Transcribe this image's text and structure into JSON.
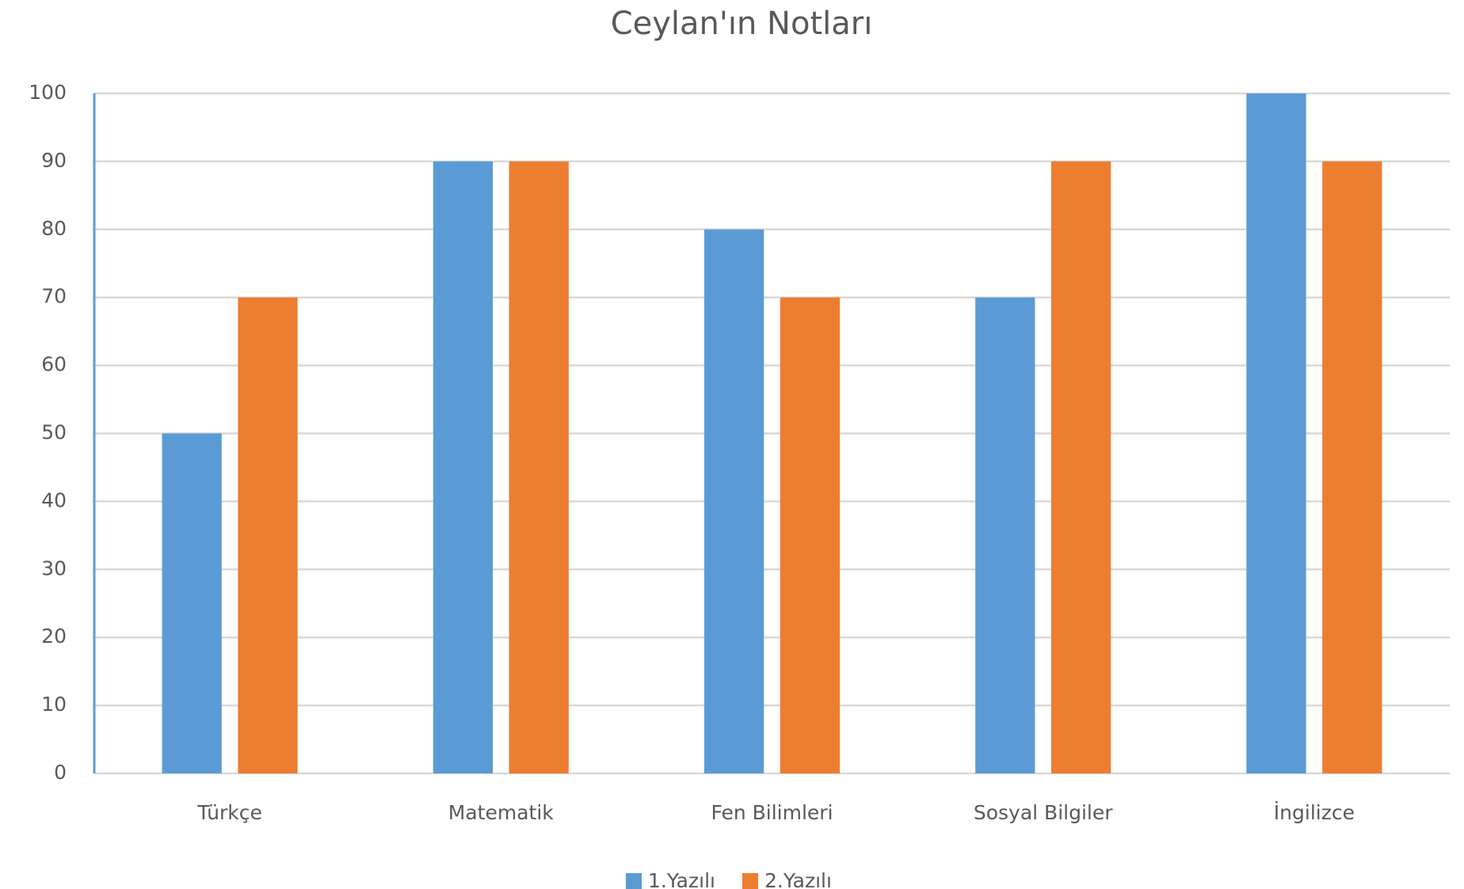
{
  "chart_data": {
    "type": "bar",
    "title": "Ceylan'ın Notları",
    "categories": [
      "Türkçe",
      "Matematik",
      "Fen Bilimleri",
      "Sosyal Bilgiler",
      "İngilizce"
    ],
    "series": [
      {
        "name": "1.Yazılı",
        "color": "#5b9bd5",
        "values": [
          50,
          90,
          80,
          70,
          100
        ]
      },
      {
        "name": "2.Yazılı",
        "color": "#ed7d31",
        "values": [
          70,
          90,
          70,
          90,
          90
        ]
      }
    ],
    "ylim": [
      0,
      100
    ],
    "yticks": [
      0,
      10,
      20,
      30,
      40,
      50,
      60,
      70,
      80,
      90,
      100
    ],
    "grid": true,
    "legend": "bottom"
  }
}
